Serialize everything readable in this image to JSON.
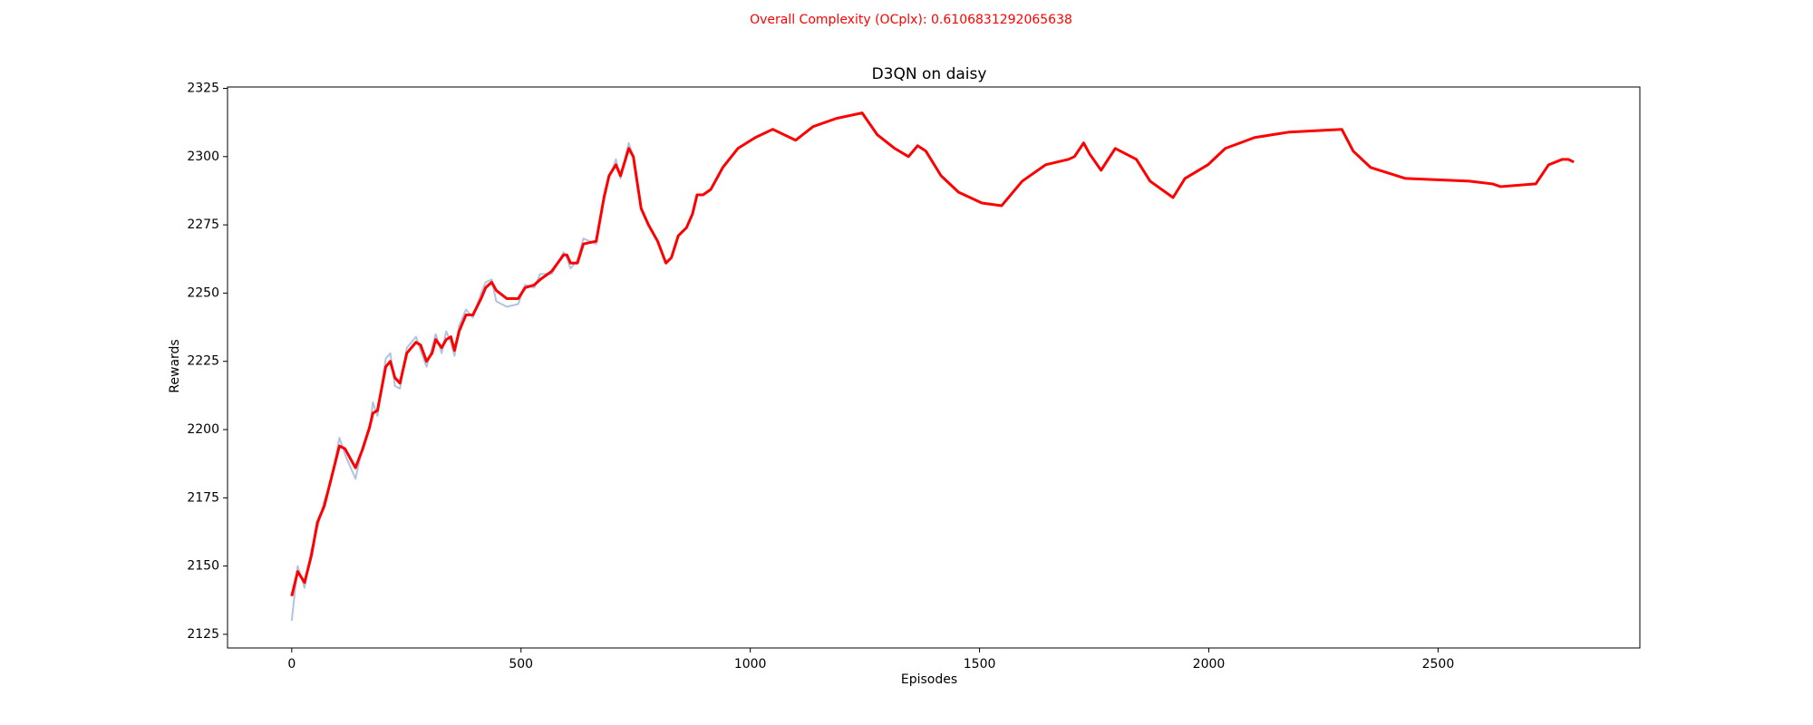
{
  "chart_data": {
    "type": "line",
    "annotation": "Overall Complexity (OCplx): 0.6106831292065638",
    "title": "D3QN on daisy",
    "x_label": "Episodes",
    "y_label": "Rewards",
    "x": [
      0,
      13,
      28,
      43,
      56,
      71,
      86,
      104,
      116,
      139,
      155,
      170,
      177,
      187,
      205,
      215,
      225,
      236,
      251,
      271,
      281,
      294,
      306,
      314,
      327,
      337,
      347,
      355,
      365,
      380,
      395,
      413,
      423,
      436,
      446,
      469,
      494,
      509,
      529,
      542,
      567,
      593,
      600,
      608,
      623,
      636,
      664,
      681,
      692,
      707,
      717,
      735,
      745,
      762,
      778,
      798,
      816,
      828,
      843,
      861,
      874,
      884,
      897,
      914,
      940,
      973,
      1011,
      1049,
      1099,
      1137,
      1188,
      1244,
      1277,
      1315,
      1345,
      1365,
      1383,
      1416,
      1454,
      1505,
      1548,
      1593,
      1644,
      1694,
      1707,
      1727,
      1740,
      1765,
      1796,
      1842,
      1872,
      1922,
      1948,
      1998,
      2036,
      2100,
      2176,
      2290,
      2315,
      2353,
      2429,
      2568,
      2619,
      2636,
      2713,
      2741,
      2771,
      2784,
      2796
    ],
    "series": [
      {
        "color": "#b0c4de",
        "values": [
          2130,
          2150,
          2142,
          2156,
          2164,
          2174,
          2181,
          2197,
          2191,
          2182,
          2194,
          2200,
          2210,
          2205,
          2226,
          2228,
          2216,
          2215,
          2230,
          2234,
          2229,
          2223,
          2230,
          2235,
          2228,
          2236,
          2232,
          2227,
          2238,
          2244,
          2241,
          2250,
          2254,
          2255,
          2247,
          2245,
          2246,
          2253,
          2252,
          2257,
          2257,
          2265,
          2263,
          2259,
          2262,
          2270,
          2268,
          2286,
          2292,
          2299,
          2292,
          2305,
          2300,
          2281,
          2275,
          2269,
          2261,
          2263,
          2271,
          2274,
          2279,
          2286,
          2286,
          2288,
          2296,
          2303,
          2307,
          2310,
          2306,
          2311,
          2314,
          2316,
          2308,
          2303,
          2300,
          2304,
          2302,
          2293,
          2287,
          2283,
          2282,
          2291,
          2297,
          2299,
          2300,
          2305,
          2301,
          2295,
          2303,
          2299,
          2291,
          2285,
          2292,
          2297,
          2303,
          2307,
          2309,
          2310,
          2302,
          2296,
          2292,
          2291,
          2290,
          2289,
          2290,
          2297,
          2299,
          2299,
          2298
        ]
      },
      {
        "color": "#ff0000",
        "values": [
          2139,
          2148,
          2144,
          2154,
          2166,
          2172,
          2182,
          2194,
          2193,
          2186,
          2193,
          2201,
          2206,
          2207,
          2223,
          2225,
          2219,
          2217,
          2228,
          2232,
          2231,
          2225,
          2228,
          2233,
          2230,
          2233,
          2234,
          2229,
          2236,
          2242,
          2242,
          2248,
          2252,
          2254,
          2251,
          2248,
          2248,
          2252,
          2253,
          2255,
          2258,
          2264,
          2264,
          2261,
          2261,
          2268,
          2269,
          2285,
          2293,
          2297,
          2293,
          2303,
          2300,
          2281,
          2275,
          2269,
          2261,
          2263,
          2271,
          2274,
          2279,
          2286,
          2286,
          2288,
          2296,
          2303,
          2307,
          2310,
          2306,
          2311,
          2314,
          2316,
          2308,
          2303,
          2300,
          2304,
          2302,
          2293,
          2287,
          2283,
          2282,
          2291,
          2297,
          2299,
          2300,
          2305,
          2301,
          2295,
          2303,
          2299,
          2291,
          2285,
          2292,
          2297,
          2303,
          2307,
          2309,
          2310,
          2302,
          2296,
          2292,
          2291,
          2290,
          2289,
          2290,
          2297,
          2299,
          2299,
          2298
        ]
      }
    ],
    "xlim": [
      -140,
      2940
    ],
    "ylim": [
      2120,
      2325.5
    ],
    "xticks": [
      0,
      500,
      1000,
      1500,
      2000,
      2500
    ],
    "yticks": [
      2125,
      2150,
      2175,
      2200,
      2225,
      2250,
      2275,
      2300,
      2325
    ],
    "grid": false
  }
}
